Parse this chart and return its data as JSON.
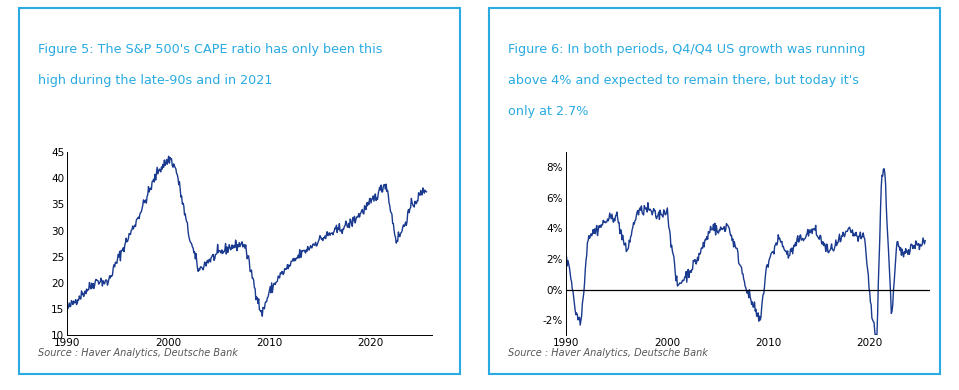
{
  "fig1_title_line1": "Figure 5: The S&P 500's CAPE ratio has only been this",
  "fig1_title_line2": "high during the late-90s and in 2021",
  "fig2_title_line1": "Figure 6: In both periods, Q4/Q4 US growth was running",
  "fig2_title_line2": "above 4% and expected to remain there, but today it's",
  "fig2_title_line3": "only at 2.7%",
  "source_text": "Source : Haver Analytics, Deutsche Bank",
  "title_color": "#29ABE2",
  "line_color": "#1A3A8F",
  "bg_color": "#FFFFFF",
  "border_color": "#29ABE2",
  "fig1_ylim": [
    10,
    45
  ],
  "fig1_yticks": [
    10,
    15,
    20,
    25,
    30,
    35,
    40,
    45
  ],
  "fig2_ylim": [
    -0.03,
    0.09
  ],
  "fig2_yticks": [
    -0.02,
    0.0,
    0.02,
    0.04,
    0.06,
    0.08
  ],
  "fig2_yticklabels": [
    "-2%",
    "0%",
    "2%",
    "4%",
    "6%",
    "8%"
  ],
  "xlim_start": 1990,
  "xlim_end": 2026,
  "xticks": [
    1990,
    2000,
    2010,
    2020
  ]
}
